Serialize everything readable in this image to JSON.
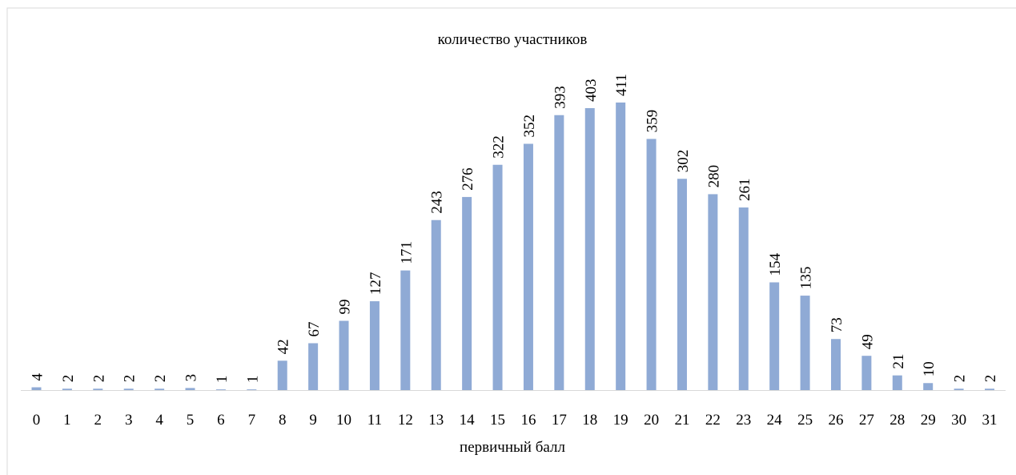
{
  "chart_data": {
    "type": "bar",
    "title": "количество участников",
    "x_label": "первичный балл",
    "categories": [
      "0",
      "1",
      "2",
      "3",
      "4",
      "5",
      "6",
      "7",
      "8",
      "9",
      "10",
      "11",
      "12",
      "13",
      "14",
      "15",
      "16",
      "17",
      "18",
      "19",
      "20",
      "21",
      "22",
      "23",
      "24",
      "25",
      "26",
      "27",
      "28",
      "29",
      "30",
      "31"
    ],
    "values": [
      4,
      2,
      2,
      2,
      2,
      3,
      1,
      1,
      42,
      67,
      99,
      127,
      171,
      243,
      276,
      322,
      352,
      393,
      403,
      411,
      359,
      302,
      280,
      261,
      154,
      135,
      73,
      49,
      21,
      10,
      2,
      2
    ],
    "color": "#8faad5"
  }
}
